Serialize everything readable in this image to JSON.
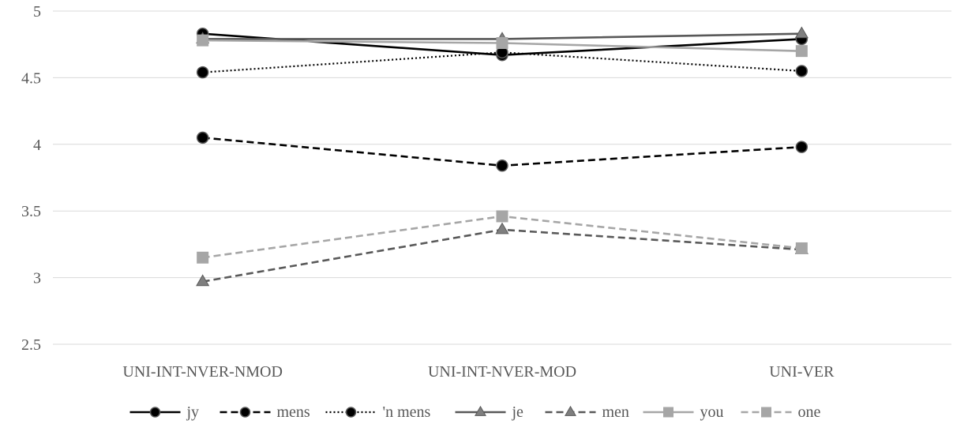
{
  "chart_data": {
    "type": "line",
    "categories": [
      "UNI-INT-NVER-NMOD",
      "UNI-INT-NVER-MOD",
      "UNI-VER"
    ],
    "ylim": [
      2.5,
      5
    ],
    "yticks": [
      2.5,
      3,
      3.5,
      4,
      4.5,
      5
    ],
    "ytick_labels": [
      "2.5",
      "3",
      "3.5",
      "4",
      "4.5",
      "5"
    ],
    "grid": true,
    "legend_position": "bottom",
    "series": [
      {
        "name": "jy",
        "values": [
          4.83,
          4.67,
          4.79
        ],
        "color": "#000000",
        "dash": "solid",
        "marker": "circle",
        "marker_fill": "#000000"
      },
      {
        "name": "mens",
        "values": [
          4.05,
          3.84,
          3.98
        ],
        "color": "#000000",
        "dash": "dashed",
        "marker": "circle",
        "marker_fill": "#000000"
      },
      {
        "name": "'n mens",
        "values": [
          4.54,
          4.69,
          4.55
        ],
        "color": "#000000",
        "dash": "dotted",
        "marker": "circle",
        "marker_fill": "#000000"
      },
      {
        "name": "je",
        "values": [
          4.79,
          4.79,
          4.83
        ],
        "color": "#595959",
        "dash": "solid",
        "marker": "triangle",
        "marker_fill": "#7f7f7f"
      },
      {
        "name": "men",
        "values": [
          2.97,
          3.36,
          3.21
        ],
        "color": "#595959",
        "dash": "dashed",
        "marker": "triangle",
        "marker_fill": "#7f7f7f"
      },
      {
        "name": "you",
        "values": [
          4.78,
          4.76,
          4.7
        ],
        "color": "#a6a6a6",
        "dash": "solid",
        "marker": "square",
        "marker_fill": "#a6a6a6"
      },
      {
        "name": "one",
        "values": [
          3.15,
          3.46,
          3.22
        ],
        "color": "#a6a6a6",
        "dash": "dashed",
        "marker": "square",
        "marker_fill": "#a6a6a6"
      }
    ]
  }
}
